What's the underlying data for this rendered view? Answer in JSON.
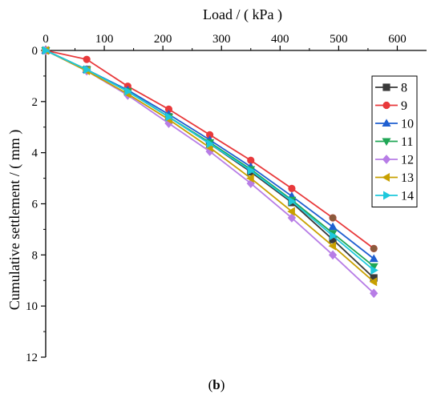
{
  "chart_data": {
    "type": "line",
    "xlabel": "Load / ( kPa )",
    "ylabel": "Cumulative settlement / ( mm )",
    "x_axis_position": "top",
    "y_axis_inverted": true,
    "xlim": [
      0,
      650
    ],
    "ylim": [
      0,
      12
    ],
    "x_ticks": [
      "0",
      "100",
      "200",
      "300",
      "400",
      "500",
      "600"
    ],
    "y_ticks": [
      "0",
      "2",
      "4",
      "6",
      "8",
      "10",
      "12"
    ],
    "grid": false,
    "legend_position": "right",
    "x": [
      0,
      70,
      140,
      210,
      280,
      350,
      420,
      490,
      560
    ],
    "series": [
      {
        "name": "8",
        "color": "#3a3a3a",
        "marker": "square",
        "values": [
          0,
          0.75,
          1.6,
          2.6,
          3.65,
          4.75,
          5.95,
          7.4,
          8.9
        ]
      },
      {
        "name": "9",
        "color": "#e8393b",
        "marker": "circle",
        "values": [
          0,
          0.35,
          1.4,
          2.3,
          3.3,
          4.3,
          5.4,
          6.55,
          7.75
        ]
      },
      {
        "name": "10",
        "color": "#1f5fd1",
        "marker": "triangle-up",
        "values": [
          0,
          0.75,
          1.55,
          2.5,
          3.5,
          4.55,
          5.7,
          6.9,
          8.15
        ]
      },
      {
        "name": "11",
        "color": "#1fa655",
        "marker": "triangle-down",
        "values": [
          0,
          0.75,
          1.6,
          2.6,
          3.6,
          4.65,
          5.85,
          7.15,
          8.45
        ]
      },
      {
        "name": "12",
        "color": "#b77de6",
        "marker": "diamond",
        "values": [
          0,
          0.8,
          1.75,
          2.85,
          3.95,
          5.2,
          6.55,
          8.0,
          9.5
        ]
      },
      {
        "name": "13",
        "color": "#c8a000",
        "marker": "triangle-left",
        "values": [
          0,
          0.8,
          1.7,
          2.7,
          3.8,
          5.0,
          6.3,
          7.65,
          9.05
        ]
      },
      {
        "name": "14",
        "color": "#1ec8dc",
        "marker": "triangle-right",
        "values": [
          0,
          0.75,
          1.6,
          2.6,
          3.65,
          4.7,
          5.9,
          7.25,
          8.6
        ]
      }
    ],
    "end_annotation_color": "#8b5a3c"
  },
  "caption": {
    "open": "(",
    "label": "b",
    "close": ")"
  }
}
